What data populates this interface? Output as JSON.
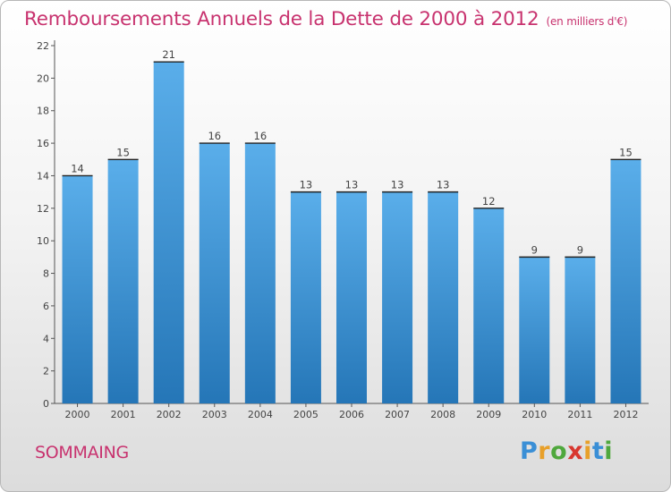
{
  "title": "Remboursements Annuels de la Dette de 2000 à 2012",
  "subtitle": "(en milliers d'€)",
  "location": "SOMMAING",
  "logo": {
    "letters": [
      "P",
      "r",
      "o",
      "x",
      "i",
      "t",
      "i"
    ],
    "colors": [
      "#3a8fd6",
      "#e8a02a",
      "#4fa83d",
      "#d8372f",
      "#e8a02a",
      "#3a8fd6",
      "#4fa83d"
    ]
  },
  "colors": {
    "bar_top": "#5aaeea",
    "bar_bottom": "#2576b7",
    "title": "#c8336f"
  },
  "chart_data": {
    "type": "bar",
    "categories": [
      "2000",
      "2001",
      "2002",
      "2003",
      "2004",
      "2005",
      "2006",
      "2007",
      "2008",
      "2009",
      "2010",
      "2011",
      "2012"
    ],
    "values": [
      14,
      15,
      21,
      16,
      16,
      13,
      13,
      13,
      13,
      12,
      9,
      9,
      15
    ],
    "ylim": [
      0,
      22
    ],
    "yticks": [
      0,
      2,
      4,
      6,
      8,
      10,
      12,
      14,
      16,
      18,
      20,
      22
    ],
    "grid": false,
    "data_labels": true
  }
}
